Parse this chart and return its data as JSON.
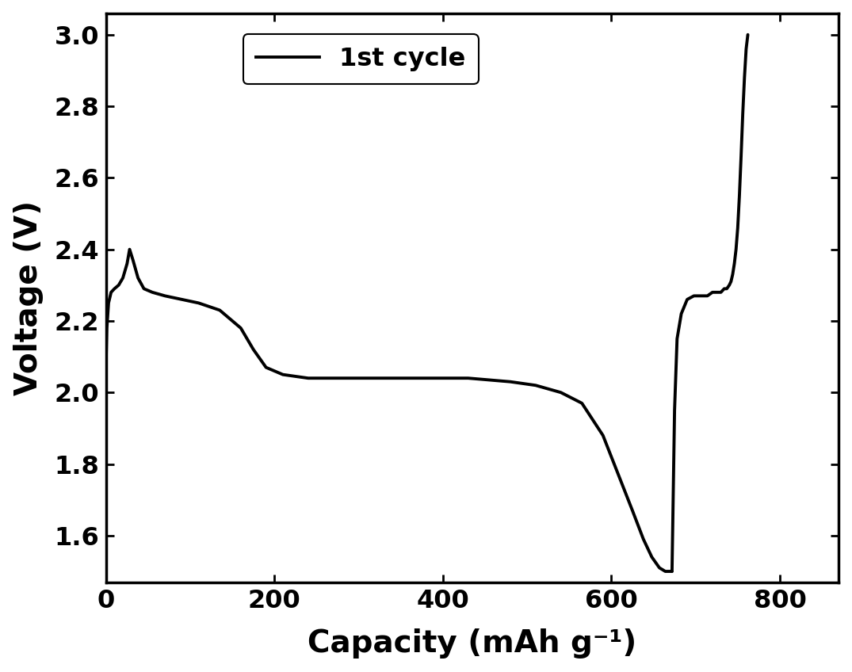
{
  "xlabel": "Capacity (mAh g⁻¹)",
  "ylabel": "Voltage (V)",
  "legend_label": "1st cycle",
  "line_color": "#000000",
  "line_width": 2.8,
  "xlim": [
    0,
    870
  ],
  "ylim": [
    1.47,
    3.06
  ],
  "xticks": [
    0,
    200,
    400,
    600,
    800
  ],
  "yticks": [
    1.6,
    1.8,
    2.0,
    2.2,
    2.4,
    2.6,
    2.8,
    3.0
  ],
  "background_color": "#ffffff",
  "discharge_x": [
    0,
    1,
    3,
    6,
    10,
    15,
    20,
    25,
    28,
    32,
    38,
    45,
    55,
    70,
    90,
    110,
    135,
    160,
    175,
    190,
    210,
    240,
    280,
    330,
    380,
    430,
    480,
    510,
    540,
    565,
    590,
    610,
    625,
    638,
    648,
    657,
    664,
    669,
    672
  ],
  "discharge_y": [
    2.08,
    2.18,
    2.25,
    2.28,
    2.29,
    2.3,
    2.32,
    2.36,
    2.4,
    2.37,
    2.32,
    2.29,
    2.28,
    2.27,
    2.26,
    2.25,
    2.23,
    2.18,
    2.12,
    2.07,
    2.05,
    2.04,
    2.04,
    2.04,
    2.04,
    2.04,
    2.03,
    2.02,
    2.0,
    1.97,
    1.88,
    1.76,
    1.67,
    1.59,
    1.54,
    1.51,
    1.5,
    1.5,
    1.5
  ],
  "charge_x": [
    672,
    675,
    678,
    683,
    690,
    698,
    706,
    714,
    720,
    726,
    730,
    734,
    737,
    740,
    742,
    744,
    746,
    748,
    750,
    752,
    754,
    756,
    758,
    760,
    762
  ],
  "charge_y": [
    1.5,
    1.95,
    2.15,
    2.22,
    2.26,
    2.27,
    2.27,
    2.27,
    2.28,
    2.28,
    2.28,
    2.29,
    2.29,
    2.3,
    2.31,
    2.33,
    2.36,
    2.4,
    2.46,
    2.55,
    2.66,
    2.78,
    2.88,
    2.96,
    3.0
  ]
}
